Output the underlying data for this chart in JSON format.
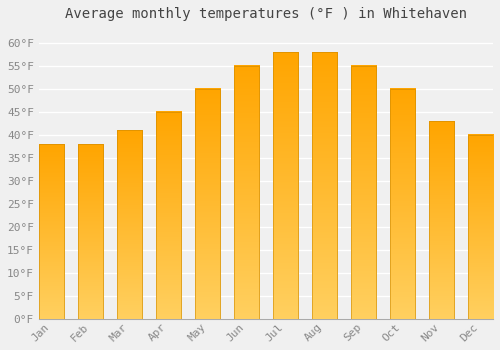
{
  "title": "Average monthly temperatures (°F ) in Whitehaven",
  "months": [
    "Jan",
    "Feb",
    "Mar",
    "Apr",
    "May",
    "Jun",
    "Jul",
    "Aug",
    "Sep",
    "Oct",
    "Nov",
    "Dec"
  ],
  "values": [
    38,
    38,
    41,
    45,
    50,
    55,
    58,
    58,
    55,
    50,
    43,
    40
  ],
  "bar_color_top": "#FFA500",
  "bar_color_bottom": "#FFD060",
  "ylim": [
    0,
    63
  ],
  "yticks": [
    0,
    5,
    10,
    15,
    20,
    25,
    30,
    35,
    40,
    45,
    50,
    55,
    60
  ],
  "ytick_labels": [
    "0°F",
    "5°F",
    "10°F",
    "15°F",
    "20°F",
    "25°F",
    "30°F",
    "35°F",
    "40°F",
    "45°F",
    "50°F",
    "55°F",
    "60°F"
  ],
  "title_fontsize": 10,
  "tick_fontsize": 8,
  "background_color": "#f0f0f0",
  "grid_color": "#ffffff",
  "bar_width": 0.65
}
